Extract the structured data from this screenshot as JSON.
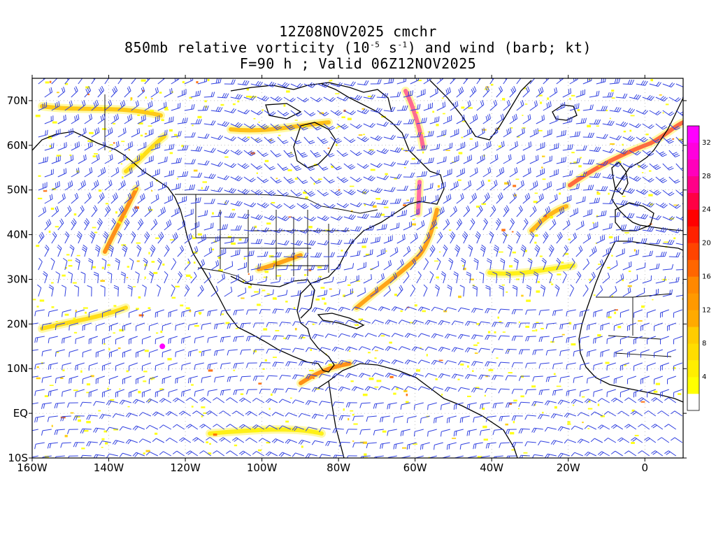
{
  "title": {
    "line1": "12Z08NOV2025 cmchr",
    "line2_pre": "850mb relative vorticity (10",
    "line2_exp1": "-5",
    "line2_mid": " s",
    "line2_exp2": "-1",
    "line2_post": ") and wind (barb; kt)",
    "line3": "F=90 h ; Valid 06Z12NOV2025"
  },
  "axes": {
    "lon_labels": [
      "160W",
      "140W",
      "120W",
      "100W",
      "80W",
      "60W",
      "40W",
      "20W",
      "0"
    ],
    "lon_values": [
      -160,
      -140,
      -120,
      -100,
      -80,
      -60,
      -40,
      -20,
      0
    ],
    "lat_labels": [
      "70N",
      "60N",
      "50N",
      "40N",
      "30N",
      "20N",
      "10N",
      "EQ",
      "10S"
    ],
    "lat_values": [
      70,
      60,
      50,
      40,
      30,
      20,
      10,
      0,
      -10
    ],
    "lon_range": [
      -160,
      10
    ],
    "lat_range": [
      -10,
      75
    ]
  },
  "colorbar": {
    "labels": [
      "4",
      "8",
      "12",
      "16",
      "20",
      "24",
      "28",
      "32"
    ],
    "levels": [
      2,
      4,
      6,
      8,
      10,
      12,
      14,
      16,
      18,
      20,
      22,
      24,
      26,
      28,
      30,
      32,
      34
    ],
    "colors": [
      "#ffffff",
      "#ffff00",
      "#ffee00",
      "#ffdd00",
      "#ffcc00",
      "#ffaa00",
      "#ff9900",
      "#ff8800",
      "#ff6600",
      "#ff4400",
      "#ff2200",
      "#ff0000",
      "#ff0044",
      "#ff0088",
      "#ff00bb",
      "#ff00dd",
      "#ff00ff"
    ]
  },
  "colors": {
    "barb": "#3040e0",
    "coast": "#000000",
    "grid": "#999999"
  }
}
